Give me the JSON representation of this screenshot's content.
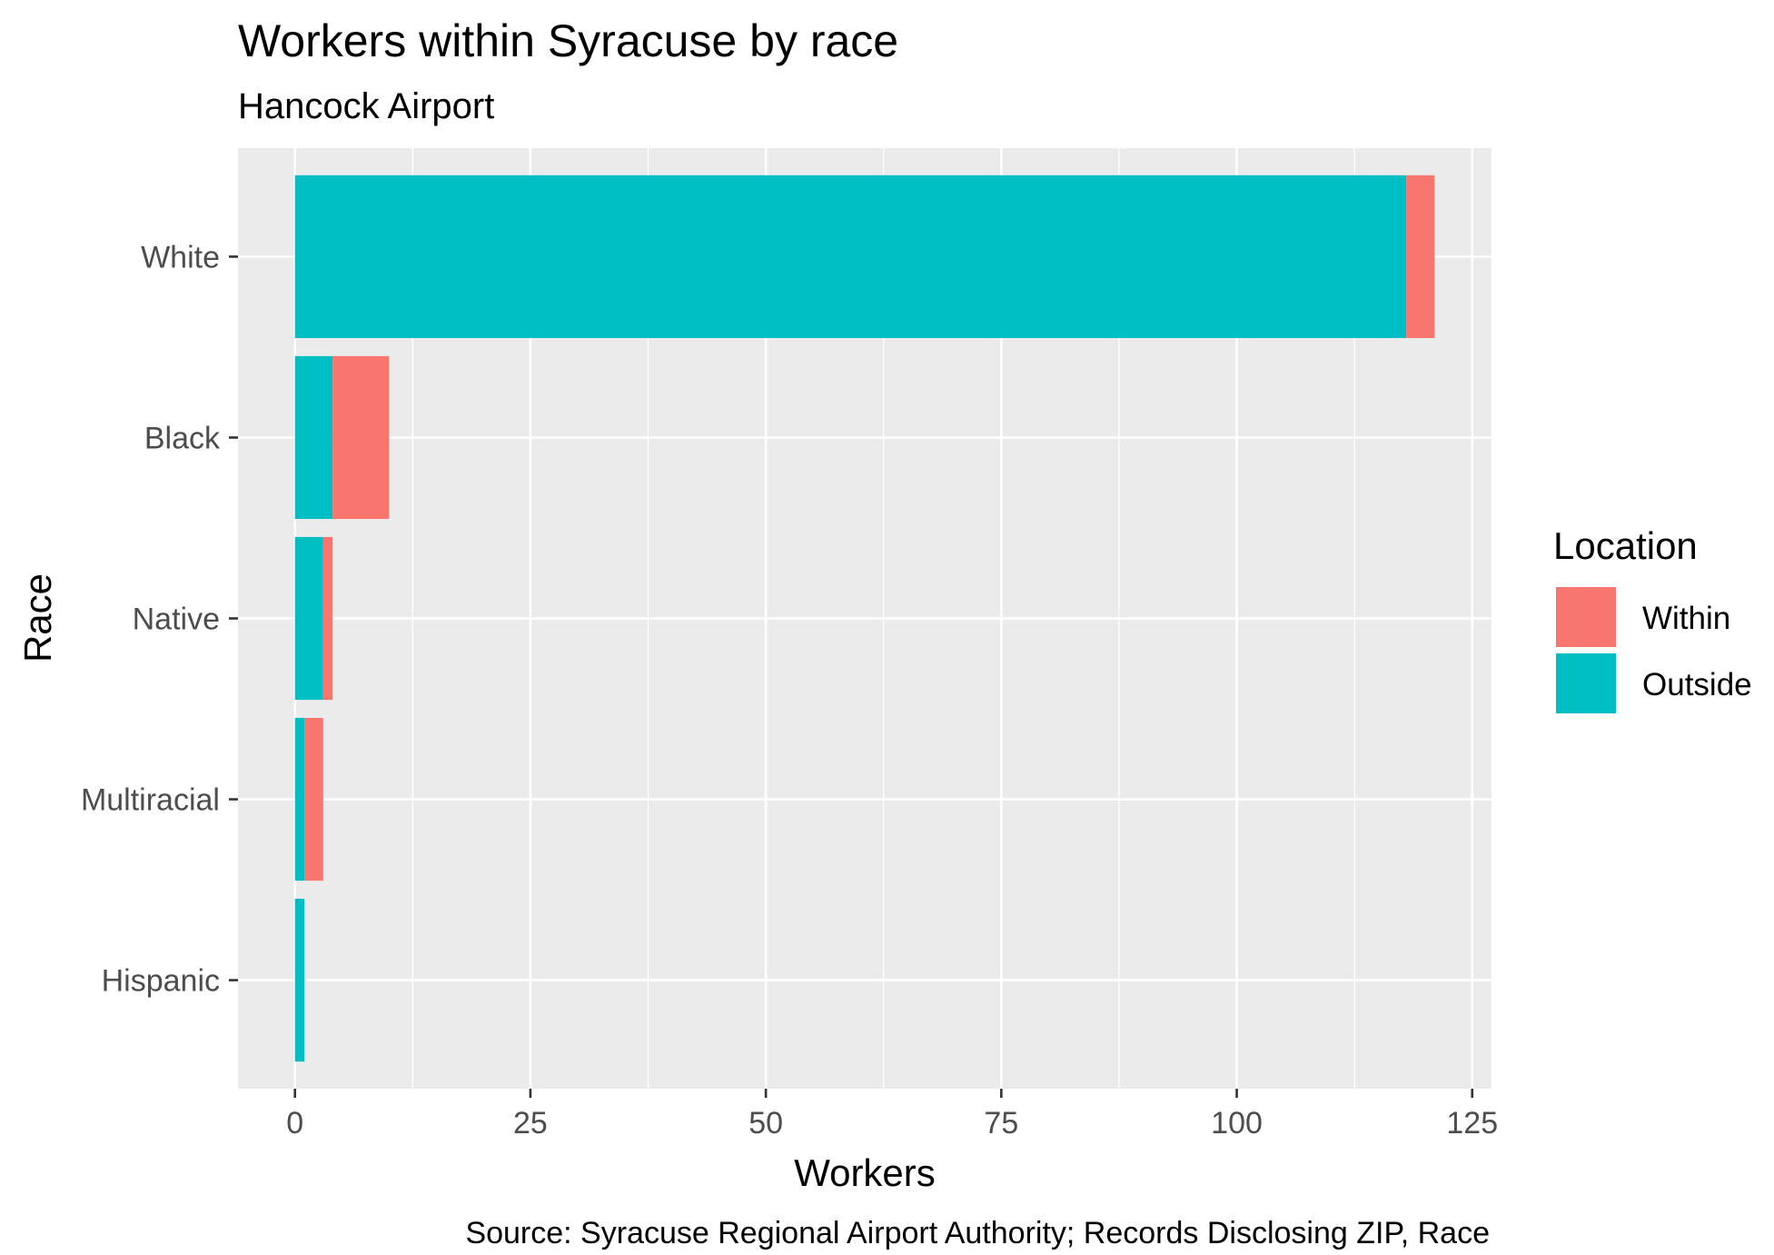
{
  "chart_data": {
    "type": "bar",
    "orientation": "horizontal",
    "stacked": true,
    "title": "Workers within Syracuse by race",
    "subtitle": "Hancock Airport",
    "xlabel": "Workers",
    "ylabel": "Race",
    "caption": "Source: Syracuse Regional Airport Authority; Records Disclosing ZIP, Race",
    "categories": [
      "White",
      "Black",
      "Native",
      "Multiracial",
      "Hispanic"
    ],
    "series": [
      {
        "name": "Outside",
        "color": "#00BFC4",
        "values": [
          118,
          4,
          3,
          1,
          1
        ]
      },
      {
        "name": "Within",
        "color": "#F8766D",
        "values": [
          3,
          6,
          1,
          2,
          0
        ]
      }
    ],
    "xlim": [
      -6.05,
      127.05
    ],
    "x_ticks": [
      "0",
      "25",
      "50",
      "75",
      "100",
      "125"
    ],
    "grid": true,
    "legend": {
      "title": "Location",
      "position": "right",
      "entries": [
        {
          "label": "Within",
          "color": "#F8766D"
        },
        {
          "label": "Outside",
          "color": "#00BFC4"
        }
      ]
    },
    "panel_background": "#EBEBEB",
    "grid_color": "#FFFFFF"
  }
}
